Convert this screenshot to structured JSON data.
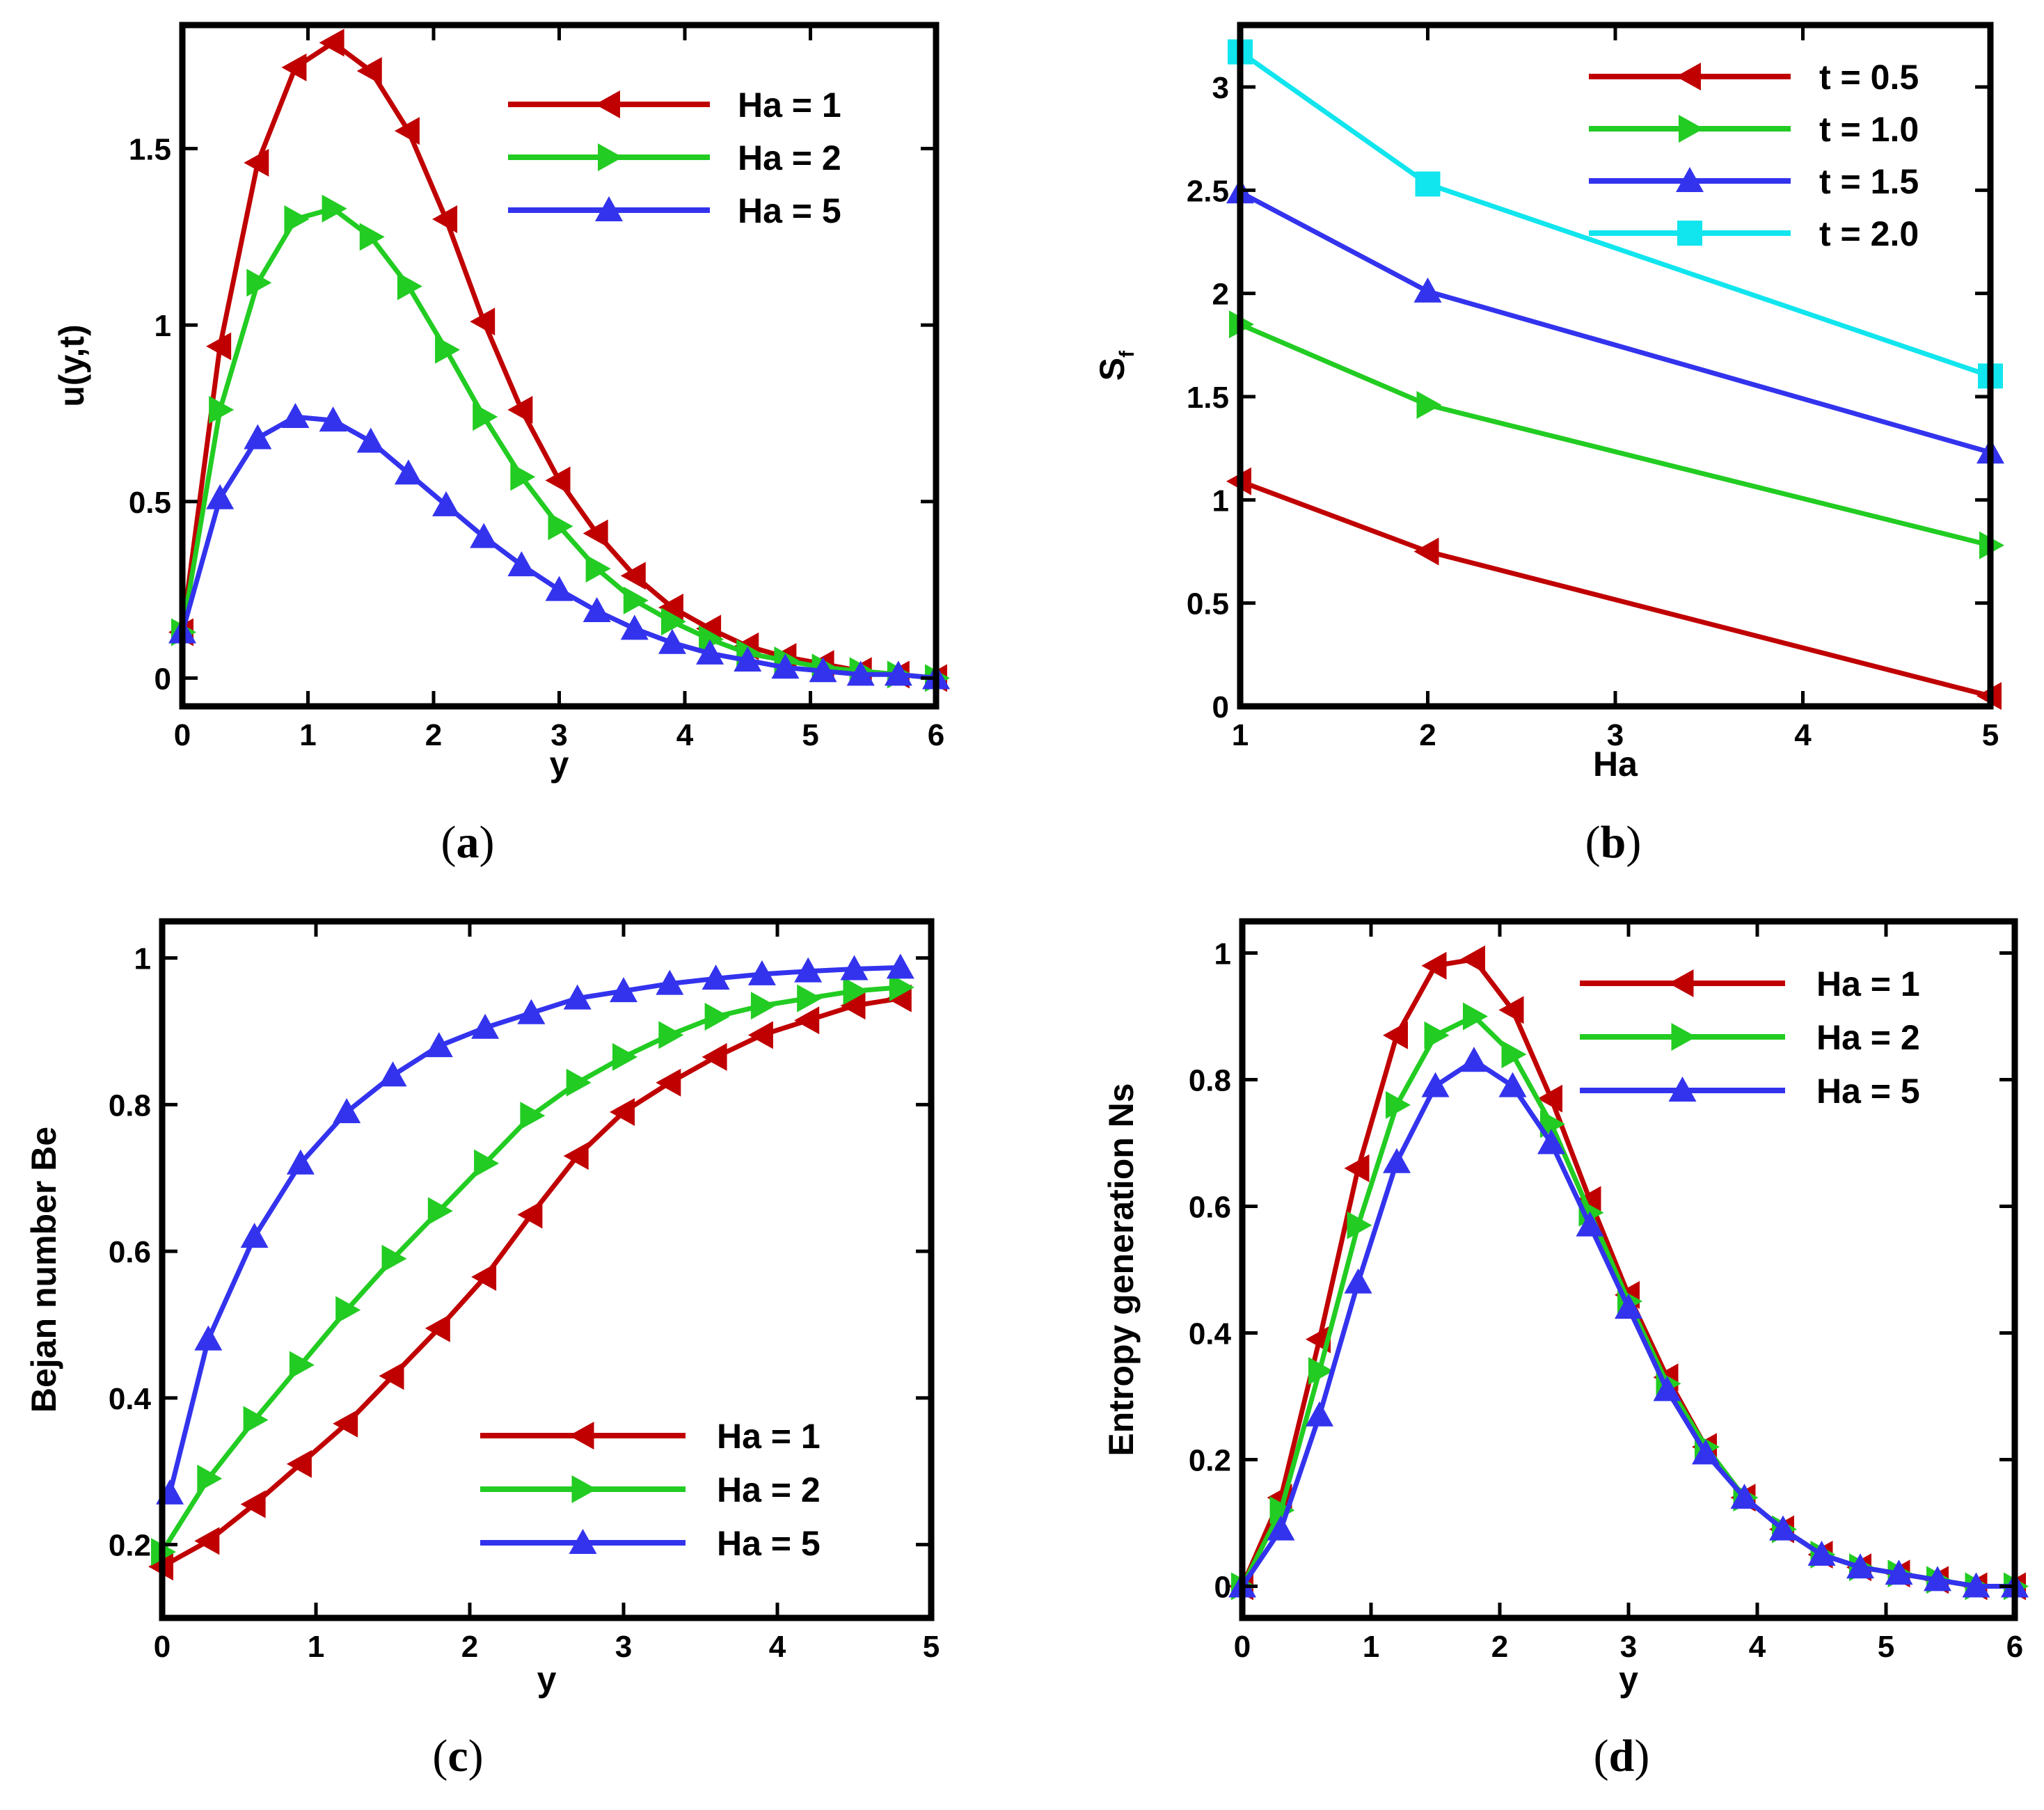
{
  "chart_data": [
    {
      "panel": "a",
      "type": "line",
      "caption": {
        "open": "(",
        "letter": "a",
        "close": ")"
      },
      "xlabel": "y",
      "ylabel": "u(y,t)",
      "xlim": [
        0,
        6
      ],
      "ylim": [
        -0.08,
        1.85
      ],
      "xticks": [
        0,
        1,
        2,
        3,
        4,
        5,
        6
      ],
      "yticks": [
        0,
        0.5,
        1,
        1.5
      ],
      "legend_position": "top-right",
      "series": [
        {
          "name": "Ha = 1",
          "color": "#c00000",
          "marker": "triangle-left",
          "x": [
            0,
            0.3,
            0.6,
            0.9,
            1.2,
            1.5,
            1.8,
            2.1,
            2.4,
            2.7,
            3.0,
            3.3,
            3.6,
            3.9,
            4.2,
            4.5,
            4.8,
            5.1,
            5.4,
            5.7,
            6.0
          ],
          "y": [
            0.13,
            0.94,
            1.46,
            1.73,
            1.8,
            1.72,
            1.55,
            1.3,
            1.01,
            0.76,
            0.56,
            0.41,
            0.29,
            0.2,
            0.14,
            0.09,
            0.06,
            0.04,
            0.02,
            0.01,
            0.0
          ]
        },
        {
          "name": "Ha = 2",
          "color": "#22cc22",
          "marker": "triangle-right",
          "x": [
            0,
            0.3,
            0.6,
            0.9,
            1.2,
            1.5,
            1.8,
            2.1,
            2.4,
            2.7,
            3.0,
            3.3,
            3.6,
            3.9,
            4.2,
            4.5,
            4.8,
            5.1,
            5.4,
            5.7,
            6.0
          ],
          "y": [
            0.13,
            0.76,
            1.12,
            1.3,
            1.33,
            1.25,
            1.11,
            0.93,
            0.74,
            0.57,
            0.43,
            0.31,
            0.22,
            0.16,
            0.11,
            0.07,
            0.05,
            0.03,
            0.02,
            0.01,
            0.0
          ]
        },
        {
          "name": "Ha = 5",
          "color": "#3333ee",
          "marker": "triangle-up",
          "x": [
            0,
            0.3,
            0.6,
            0.9,
            1.2,
            1.5,
            1.8,
            2.1,
            2.4,
            2.7,
            3.0,
            3.3,
            3.6,
            3.9,
            4.2,
            4.5,
            4.8,
            5.1,
            5.4,
            5.7,
            6.0
          ],
          "y": [
            0.13,
            0.51,
            0.68,
            0.74,
            0.73,
            0.67,
            0.58,
            0.49,
            0.4,
            0.32,
            0.25,
            0.19,
            0.14,
            0.1,
            0.07,
            0.05,
            0.03,
            0.02,
            0.01,
            0.01,
            0.0
          ]
        }
      ]
    },
    {
      "panel": "b",
      "type": "line",
      "caption": {
        "open": "(",
        "letter": "b",
        "close": ")"
      },
      "xlabel": "Ha",
      "ylabel": "S",
      "ylabel_sub": "f",
      "xlim": [
        1,
        5
      ],
      "ylim": [
        0,
        3.3
      ],
      "xticks": [
        1,
        2,
        3,
        4,
        5
      ],
      "yticks": [
        0,
        0.5,
        1,
        1.5,
        2,
        2.5,
        3
      ],
      "legend_position": "top-right",
      "series": [
        {
          "name": "t = 0.5",
          "color": "#c00000",
          "marker": "triangle-left",
          "x": [
            1,
            2,
            5
          ],
          "y": [
            1.09,
            0.75,
            0.05
          ]
        },
        {
          "name": "t = 1.0",
          "color": "#22cc22",
          "marker": "triangle-right",
          "x": [
            1,
            2,
            5
          ],
          "y": [
            1.85,
            1.46,
            0.78
          ]
        },
        {
          "name": "t = 1.5",
          "color": "#3333ee",
          "marker": "triangle-up",
          "x": [
            1,
            2,
            5
          ],
          "y": [
            2.49,
            2.01,
            1.23
          ]
        },
        {
          "name": "t = 2.0",
          "color": "#11e5ee",
          "marker": "square",
          "x": [
            1,
            2,
            5
          ],
          "y": [
            3.17,
            2.53,
            1.6
          ]
        }
      ]
    },
    {
      "panel": "c",
      "type": "line",
      "caption": {
        "open": "(",
        "letter": "c",
        "close": ")"
      },
      "xlabel": "y",
      "ylabel": "Bejan number Be",
      "xlim": [
        0,
        5
      ],
      "ylim": [
        0.1,
        1.05
      ],
      "xticks": [
        0,
        1,
        2,
        3,
        4,
        5
      ],
      "yticks": [
        0.2,
        0.4,
        0.6,
        0.8,
        1
      ],
      "legend_position": "bottom-right",
      "series": [
        {
          "name": "Ha = 1",
          "color": "#c00000",
          "marker": "triangle-left",
          "x": [
            0,
            0.3,
            0.6,
            0.9,
            1.2,
            1.5,
            1.8,
            2.1,
            2.4,
            2.7,
            3.0,
            3.3,
            3.6,
            3.9,
            4.2,
            4.5,
            4.8
          ],
          "y": [
            0.17,
            0.205,
            0.255,
            0.31,
            0.365,
            0.43,
            0.495,
            0.565,
            0.65,
            0.73,
            0.79,
            0.83,
            0.865,
            0.895,
            0.915,
            0.935,
            0.945
          ]
        },
        {
          "name": "Ha = 2",
          "color": "#22cc22",
          "marker": "triangle-right",
          "x": [
            0,
            0.3,
            0.6,
            0.9,
            1.2,
            1.5,
            1.8,
            2.1,
            2.4,
            2.7,
            3.0,
            3.3,
            3.6,
            3.9,
            4.2,
            4.5,
            4.8
          ],
          "y": [
            0.19,
            0.29,
            0.37,
            0.445,
            0.52,
            0.59,
            0.655,
            0.72,
            0.785,
            0.83,
            0.865,
            0.895,
            0.92,
            0.935,
            0.945,
            0.955,
            0.96
          ]
        },
        {
          "name": "Ha = 5",
          "color": "#3333ee",
          "marker": "triangle-up",
          "x": [
            0.05,
            0.3,
            0.6,
            0.9,
            1.2,
            1.5,
            1.8,
            2.1,
            2.4,
            2.7,
            3.0,
            3.3,
            3.6,
            3.9,
            4.2,
            4.5,
            4.8
          ],
          "y": [
            0.27,
            0.48,
            0.62,
            0.72,
            0.79,
            0.84,
            0.88,
            0.905,
            0.925,
            0.945,
            0.955,
            0.965,
            0.972,
            0.978,
            0.982,
            0.985,
            0.987
          ]
        }
      ]
    },
    {
      "panel": "d",
      "type": "line",
      "caption": {
        "open": "(",
        "letter": "d",
        "close": ")"
      },
      "xlabel": "y",
      "ylabel": "Entropy generation Ns",
      "xlim": [
        0,
        6
      ],
      "ylim": [
        -0.05,
        1.05
      ],
      "xticks": [
        0,
        1,
        2,
        3,
        4,
        5,
        6
      ],
      "yticks": [
        0,
        0.2,
        0.4,
        0.6,
        0.8,
        1
      ],
      "legend_position": "top-right",
      "series": [
        {
          "name": "Ha = 1",
          "color": "#c00000",
          "marker": "triangle-left",
          "x": [
            0,
            0.3,
            0.6,
            0.9,
            1.2,
            1.5,
            1.8,
            2.1,
            2.4,
            2.7,
            3.0,
            3.3,
            3.6,
            3.9,
            4.2,
            4.5,
            4.8,
            5.1,
            5.4,
            5.7,
            6.0
          ],
          "y": [
            0.0,
            0.14,
            0.39,
            0.66,
            0.87,
            0.98,
            0.99,
            0.91,
            0.77,
            0.61,
            0.46,
            0.33,
            0.22,
            0.14,
            0.09,
            0.05,
            0.03,
            0.02,
            0.01,
            0.0,
            0.0
          ]
        },
        {
          "name": "Ha = 2",
          "color": "#22cc22",
          "marker": "triangle-right",
          "x": [
            0,
            0.3,
            0.6,
            0.9,
            1.2,
            1.5,
            1.8,
            2.1,
            2.4,
            2.7,
            3.0,
            3.3,
            3.6,
            3.9,
            4.2,
            4.5,
            4.8,
            5.1,
            5.4,
            5.7,
            6.0
          ],
          "y": [
            0.0,
            0.12,
            0.34,
            0.57,
            0.76,
            0.87,
            0.9,
            0.84,
            0.73,
            0.59,
            0.45,
            0.32,
            0.22,
            0.14,
            0.09,
            0.05,
            0.03,
            0.02,
            0.01,
            0.0,
            0.0
          ]
        },
        {
          "name": "Ha = 5",
          "color": "#3333ee",
          "marker": "triangle-up",
          "x": [
            0,
            0.3,
            0.6,
            0.9,
            1.2,
            1.5,
            1.8,
            2.1,
            2.4,
            2.7,
            3.0,
            3.3,
            3.6,
            3.9,
            4.2,
            4.5,
            4.8,
            5.1,
            5.4,
            5.7,
            6.0
          ],
          "y": [
            0.0,
            0.09,
            0.27,
            0.48,
            0.67,
            0.79,
            0.83,
            0.79,
            0.7,
            0.57,
            0.44,
            0.31,
            0.21,
            0.14,
            0.09,
            0.05,
            0.03,
            0.02,
            0.01,
            0.0,
            0.0
          ]
        }
      ]
    }
  ]
}
